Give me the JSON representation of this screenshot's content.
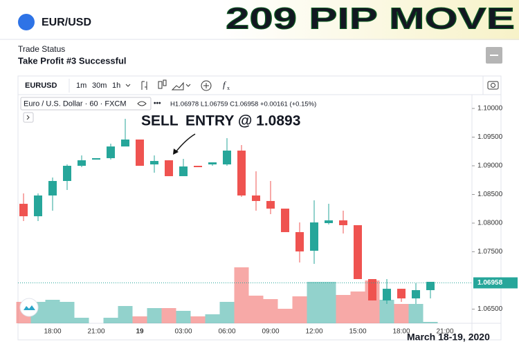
{
  "header": {
    "symbol": "EUR/USD",
    "banner": "209 PIP MOVE",
    "status_label": "Trade Status",
    "status": "Take Profit #3 Successful"
  },
  "toolbar": {
    "symbol": "EURUSD",
    "intervals": [
      "1m",
      "30m",
      "1h"
    ]
  },
  "legend": {
    "instrument": "Euro / U.S. Dollar · 60 · FXCM",
    "ohlc": "H1.06978 L1.06759 C1.06958 +0.00161 (+0.15%)"
  },
  "chart_data": {
    "type": "candlestick",
    "annotations": {
      "sell": "SELL",
      "entry": "ENTRY @  1.0893",
      "date": "March 18-19, 2020"
    },
    "categories": [
      null,
      null,
      "18:00",
      null,
      null,
      "21:00",
      null,
      null,
      "19",
      null,
      null,
      "03:00",
      null,
      null,
      "06:00",
      null,
      null,
      "09:00",
      null,
      null,
      "12:00",
      null,
      null,
      "15:00",
      null,
      null,
      "18:00",
      null,
      null,
      "21:00"
    ],
    "open": [
      1.08337,
      1.0812,
      1.08482,
      1.08735,
      1.09,
      1.09108,
      1.09133,
      1.09337,
      1.09458,
      1.09024,
      1.09096,
      1.08819,
      1.09,
      1.09024,
      1.09024,
      1.09265,
      1.08482,
      1.08386,
      1.08253,
      1.07843,
      1.07518,
      1.08,
      1.08048,
      1.07964,
      1.07024,
      1.06651,
      1.06855,
      1.06687,
      1.06831,
      null
    ],
    "high": [
      1.08518,
      1.08518,
      1.08795,
      1.09024,
      1.09181,
      1.09133,
      1.09386,
      1.09819,
      1.09458,
      1.09181,
      1.09096,
      1.0912,
      1.09,
      1.0906,
      1.09482,
      1.09361,
      1.08904,
      1.08735,
      1.08253,
      1.08012,
      1.08398,
      1.08337,
      1.08217,
      1.07964,
      1.07024,
      1.07024,
      1.06855,
      1.06952,
      1.06976,
      null
    ],
    "low": [
      1.08036,
      1.08036,
      1.08217,
      1.08578,
      1.08976,
      1.09108,
      1.09108,
      1.09337,
      1.09,
      1.0888,
      1.08819,
      1.08819,
      1.08976,
      1.09,
      1.09,
      1.08458,
      1.08217,
      1.08157,
      1.07843,
      1.07313,
      1.07289,
      1.07976,
      1.07819,
      1.07024,
      1.06651,
      1.0659,
      1.06627,
      1.0659,
      1.06687,
      null
    ],
    "close": [
      1.0812,
      1.08482,
      1.08735,
      1.09,
      1.09096,
      1.09133,
      1.09337,
      1.09458,
      1.09,
      1.09084,
      1.08819,
      1.08988,
      1.08976,
      1.0906,
      1.09265,
      1.08482,
      1.08386,
      1.08253,
      1.07843,
      1.07506,
      1.08012,
      1.08048,
      1.07964,
      1.07024,
      1.06651,
      1.06855,
      1.06687,
      1.06831,
      1.06976,
      null
    ],
    "volume": [
      31,
      31,
      34,
      31,
      8,
      0,
      8,
      25,
      10,
      22,
      22,
      18,
      10,
      13,
      31,
      81,
      40,
      35,
      21,
      39,
      60,
      60,
      41,
      46,
      62,
      34,
      28,
      28,
      2,
      null
    ],
    "up_color": "#26a69a",
    "down_color": "#ef5350",
    "ylim": [
      1.06253,
      1.10205
    ],
    "yticks": [
      {
        "value": 1.1,
        "label": "1.10000"
      },
      {
        "value": 1.095,
        "label": "1.09500"
      },
      {
        "value": 1.09,
        "label": "1.09000"
      },
      {
        "value": 1.085,
        "label": "1.08500"
      },
      {
        "value": 1.08,
        "label": "1.08000"
      },
      {
        "value": 1.075,
        "label": "1.07500"
      },
      {
        "value": 1.065,
        "label": "1.06500"
      }
    ],
    "last_price": 1.06958
  }
}
